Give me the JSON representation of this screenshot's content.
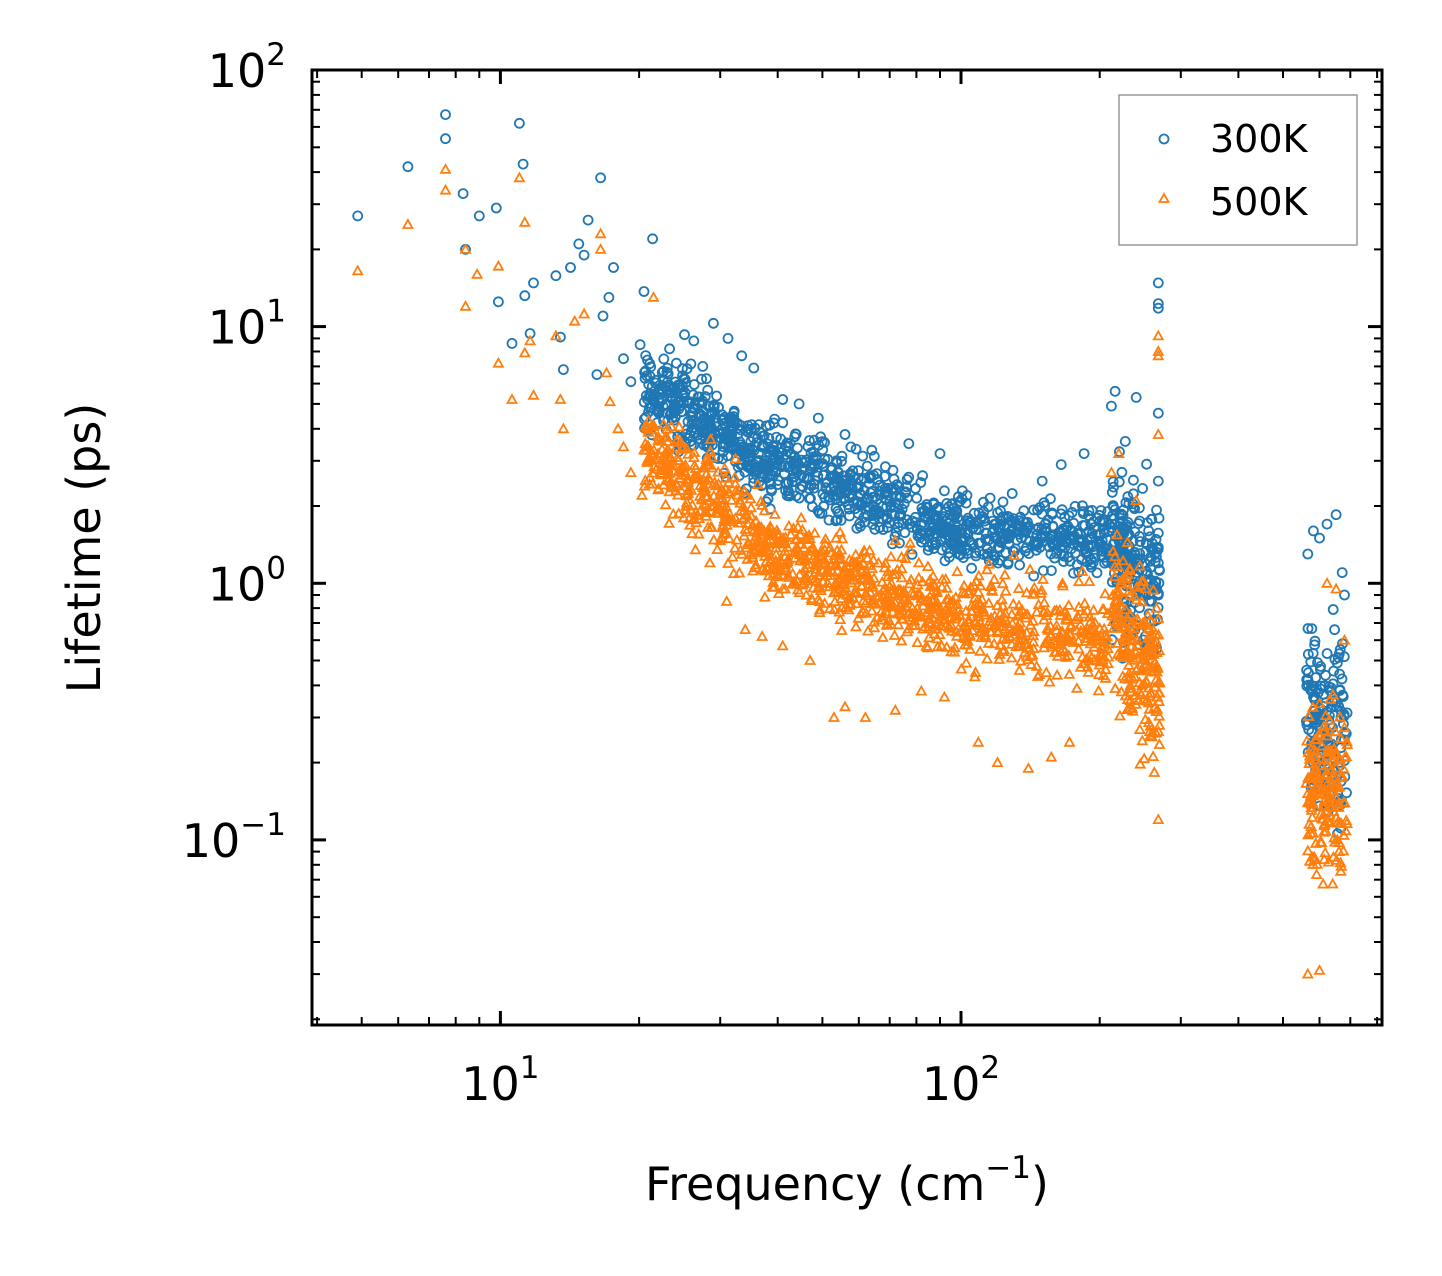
{
  "chart_data": {
    "type": "scatter",
    "xscale": "log",
    "yscale": "log",
    "xlim": [
      3.9,
      820
    ],
    "ylim": [
      0.019,
      100
    ],
    "xlabel": {
      "base": "Frequency (cm",
      "exponent": "−1",
      "suffix": ")"
    },
    "ylabel": "Lifetime (ps)",
    "x_ticks": [
      {
        "value": 10,
        "base": "10",
        "exp": "1"
      },
      {
        "value": 100,
        "base": "10",
        "exp": "2"
      }
    ],
    "y_ticks": [
      {
        "value": 100,
        "base": "10",
        "exp": "2"
      },
      {
        "value": 10,
        "base": "10",
        "exp": "1"
      },
      {
        "value": 1,
        "base": "10",
        "exp": "0"
      },
      {
        "value": 0.1,
        "base": "10",
        "exp": "−1"
      }
    ],
    "legend": {
      "position": "top-right",
      "entries": [
        "300K",
        "500K"
      ]
    },
    "series": [
      {
        "name": "300K",
        "marker": "circle",
        "color": "#1f77b4",
        "points": [
          [
            4.9,
            27
          ],
          [
            6.3,
            42
          ],
          [
            7.6,
            67
          ],
          [
            7.6,
            54
          ],
          [
            8.3,
            33
          ],
          [
            8.4,
            20
          ],
          [
            9.0,
            27
          ],
          [
            9.8,
            29
          ],
          [
            9.9,
            12.5
          ],
          [
            10.6,
            8.6
          ],
          [
            11.0,
            62
          ],
          [
            11.2,
            43
          ],
          [
            11.3,
            13.2
          ],
          [
            11.6,
            9.4
          ],
          [
            11.8,
            14.8
          ],
          [
            13.2,
            15.8
          ],
          [
            13.5,
            9.1
          ],
          [
            13.7,
            6.8
          ],
          [
            14.2,
            17
          ],
          [
            14.8,
            21
          ],
          [
            15.2,
            19
          ],
          [
            15.5,
            26
          ],
          [
            16.2,
            6.5
          ],
          [
            16.5,
            38
          ],
          [
            16.7,
            11
          ],
          [
            17.2,
            13
          ],
          [
            17.6,
            17
          ],
          [
            18.5,
            7.5
          ],
          [
            19.2,
            6.1
          ],
          [
            20.1,
            8.5
          ],
          [
            20.5,
            13.7
          ],
          [
            21.4,
            22
          ],
          [
            22.0,
            5.6
          ],
          [
            23.3,
            8.2
          ],
          [
            24.1,
            7.2
          ],
          [
            25.1,
            9.3
          ],
          [
            26.3,
            8.8
          ],
          [
            27.5,
            7.0
          ],
          [
            29.0,
            10.3
          ],
          [
            31.2,
            9.0
          ],
          [
            33.4,
            7.7
          ],
          [
            35.5,
            6.9
          ],
          [
            41.0,
            5.2
          ],
          [
            44.5,
            5.0
          ],
          [
            49.0,
            4.4
          ],
          [
            56.0,
            3.8
          ],
          [
            64.0,
            3.3
          ],
          [
            77.0,
            3.5
          ],
          [
            90.0,
            3.2
          ],
          [
            103.0,
            2.2
          ],
          [
            112.0,
            1.9
          ],
          [
            136.0,
            1.6
          ],
          [
            150.0,
            2.5
          ],
          [
            165.0,
            2.9
          ],
          [
            185.0,
            3.2
          ],
          [
            212.0,
            4.9
          ],
          [
            216.0,
            5.6
          ],
          [
            240.0,
            5.3
          ],
          [
            268.0,
            14.8
          ],
          [
            268.0,
            12.3
          ],
          [
            268.0,
            11.8
          ],
          [
            268.0,
            4.6
          ],
          [
            268.0,
            2.5
          ],
          [
            268.0,
            1.2
          ],
          [
            268.0,
            0.9
          ],
          [
            566.0,
            1.3
          ],
          [
            582.0,
            1.6
          ],
          [
            600.0,
            1.5
          ],
          [
            623.0,
            1.7
          ],
          [
            652.0,
            1.85
          ],
          [
            672.0,
            1.1
          ],
          [
            680.0,
            0.9
          ]
        ],
        "bands": [
          {
            "x": [
              20.5,
              40
            ],
            "y_center": [
              5.8,
              2.9
            ],
            "spread": 2.0,
            "n": 380
          },
          {
            "x": [
              40,
              100
            ],
            "y_center": [
              2.9,
              1.6
            ],
            "spread": 1.9,
            "n": 420
          },
          {
            "x": [
              100,
              210
            ],
            "y_center": [
              1.6,
              1.5
            ],
            "spread": 1.9,
            "n": 300
          },
          {
            "x": [
              212,
              270
            ],
            "y_center": [
              1.4,
              1.0
            ],
            "spread": 4.2,
            "n": 220
          },
          {
            "x": [
              560,
              690
            ],
            "y_center": [
              0.3,
              0.28
            ],
            "spread": 5.5,
            "n": 160
          }
        ]
      },
      {
        "name": "500K",
        "marker": "triangle",
        "color": "#ff7f0e",
        "points": [
          [
            4.9,
            16.5
          ],
          [
            6.3,
            25
          ],
          [
            7.6,
            41
          ],
          [
            7.6,
            34
          ],
          [
            8.4,
            20
          ],
          [
            8.4,
            12
          ],
          [
            8.9,
            16
          ],
          [
            9.9,
            17.2
          ],
          [
            9.9,
            7.2
          ],
          [
            10.6,
            5.2
          ],
          [
            11.0,
            38
          ],
          [
            11.3,
            25.5
          ],
          [
            11.3,
            7.9
          ],
          [
            11.6,
            8.8
          ],
          [
            11.8,
            5.4
          ],
          [
            13.2,
            9.2
          ],
          [
            13.5,
            5.2
          ],
          [
            13.7,
            4.0
          ],
          [
            14.5,
            10.5
          ],
          [
            15.2,
            11.2
          ],
          [
            16.5,
            23
          ],
          [
            16.5,
            20
          ],
          [
            17.0,
            6.6
          ],
          [
            17.3,
            5.1
          ],
          [
            18.0,
            4.0
          ],
          [
            18.5,
            3.4
          ],
          [
            19.2,
            2.7
          ],
          [
            20.3,
            2.2
          ],
          [
            21.5,
            13
          ],
          [
            22.0,
            3.6
          ],
          [
            23.5,
            2.4
          ],
          [
            25.0,
            1.8
          ],
          [
            26.5,
            1.35
          ],
          [
            28.5,
            1.2
          ],
          [
            31.0,
            0.85
          ],
          [
            34.0,
            0.66
          ],
          [
            37.0,
            0.62
          ],
          [
            41.0,
            0.57
          ],
          [
            47.0,
            0.5
          ],
          [
            53.0,
            0.3
          ],
          [
            56.0,
            0.33
          ],
          [
            62.0,
            0.3
          ],
          [
            72.0,
            0.32
          ],
          [
            82.0,
            0.38
          ],
          [
            92.0,
            0.36
          ],
          [
            109.0,
            0.24
          ],
          [
            120.0,
            0.2
          ],
          [
            140.0,
            0.19
          ],
          [
            157.0,
            0.21
          ],
          [
            172.0,
            0.24
          ],
          [
            212.0,
            2.7
          ],
          [
            220.0,
            3.2
          ],
          [
            240.0,
            2.1
          ],
          [
            268.0,
            9.2
          ],
          [
            268.0,
            8.0
          ],
          [
            268.0,
            7.7
          ],
          [
            268.0,
            3.8
          ],
          [
            268.0,
            0.12
          ],
          [
            566.0,
            0.03
          ],
          [
            600.0,
            0.031
          ],
          [
            623.0,
            1.0
          ],
          [
            652.0,
            0.95
          ],
          [
            680.0,
            0.6
          ]
        ],
        "bands": [
          {
            "x": [
              20.5,
              40
            ],
            "y_center": [
              3.4,
              1.3
            ],
            "spread": 2.2,
            "n": 360
          },
          {
            "x": [
              40,
              100
            ],
            "y_center": [
              1.3,
              0.72
            ],
            "spread": 2.1,
            "n": 460
          },
          {
            "x": [
              100,
              210
            ],
            "y_center": [
              0.72,
              0.6
            ],
            "spread": 2.4,
            "n": 320
          },
          {
            "x": [
              212,
              270
            ],
            "y_center": [
              0.8,
              0.4
            ],
            "spread": 4.5,
            "n": 220
          },
          {
            "x": [
              560,
              690
            ],
            "y_center": [
              0.16,
              0.15
            ],
            "spread": 4.8,
            "n": 170
          }
        ]
      }
    ]
  }
}
